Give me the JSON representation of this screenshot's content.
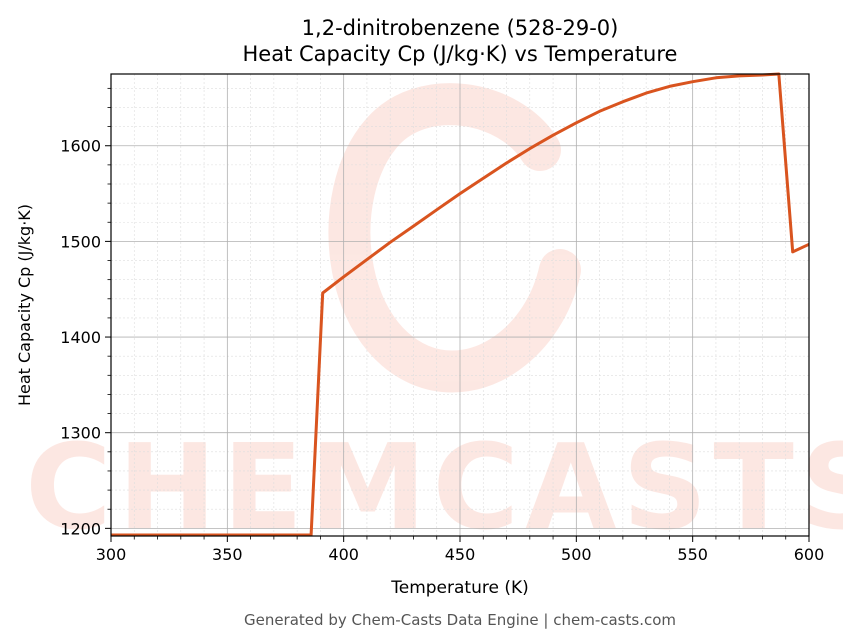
{
  "chart_data": {
    "type": "line",
    "title": "1,2-dinitrobenzene (528-29-0)",
    "subtitle": "Heat Capacity Cp (J/kg·K) vs Temperature",
    "xlabel": "Temperature (K)",
    "ylabel": "Heat Capacity Cp (J/kg·K)",
    "xlim": [
      300,
      600
    ],
    "ylim": [
      1192,
      1675
    ],
    "xticks": [
      300,
      350,
      400,
      450,
      500,
      550,
      600
    ],
    "yticks": [
      1200,
      1300,
      1400,
      1500,
      1600
    ],
    "grid": true,
    "series_color": "#d9541f",
    "series": [
      {
        "x": [
          300,
          320,
          340,
          360,
          380,
          386,
          391,
          400,
          410,
          420,
          430,
          440,
          450,
          460,
          470,
          480,
          490,
          500,
          510,
          520,
          530,
          540,
          550,
          560,
          570,
          580,
          587,
          593,
          600
        ],
        "y": [
          1193,
          1193,
          1193,
          1193,
          1193,
          1193,
          1446,
          1463,
          1481,
          1499,
          1516,
          1533,
          1550,
          1566,
          1582,
          1597,
          1611,
          1624,
          1636,
          1646,
          1655,
          1662,
          1667,
          1671,
          1673,
          1674,
          1675,
          1489,
          1497
        ]
      }
    ]
  },
  "watermark": {
    "text": "CHEMCASTS",
    "color": "#fbd5cc"
  },
  "footer": "Generated by Chem-Casts Data Engine | chem-casts.com"
}
